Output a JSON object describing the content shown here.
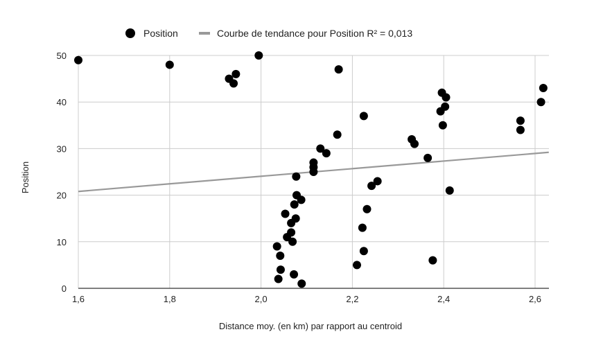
{
  "chart_data": {
    "type": "scatter",
    "title": "",
    "xlabel": "Distance moy. (en km) par rapport au centroid",
    "ylabel": "Position",
    "xlim": [
      1.6,
      2.63
    ],
    "ylim": [
      0,
      50
    ],
    "x_ticks": [
      "1,6",
      "1,8",
      "2,0",
      "2,2",
      "2,4",
      "2,6"
    ],
    "x_tick_values": [
      1.6,
      1.8,
      2.0,
      2.2,
      2.4,
      2.6
    ],
    "y_ticks": [
      "0",
      "10",
      "20",
      "30",
      "40",
      "50"
    ],
    "y_tick_values": [
      0,
      10,
      20,
      30,
      40,
      50
    ],
    "grid": true,
    "legend_position": "top",
    "series": [
      {
        "name": "Position",
        "color": "#000000",
        "marker": "circle",
        "points": [
          [
            1.6,
            49
          ],
          [
            1.8,
            48
          ],
          [
            1.93,
            45
          ],
          [
            1.94,
            44
          ],
          [
            1.945,
            46
          ],
          [
            1.995,
            50
          ],
          [
            2.17,
            47
          ],
          [
            2.225,
            37
          ],
          [
            2.167,
            33
          ],
          [
            2.13,
            30
          ],
          [
            2.143,
            29
          ],
          [
            2.115,
            27
          ],
          [
            2.115,
            26
          ],
          [
            2.115,
            25
          ],
          [
            2.077,
            24
          ],
          [
            2.078,
            20
          ],
          [
            2.088,
            19
          ],
          [
            2.073,
            18
          ],
          [
            2.053,
            16
          ],
          [
            2.076,
            15
          ],
          [
            2.066,
            14
          ],
          [
            2.066,
            12
          ],
          [
            2.057,
            11
          ],
          [
            2.069,
            10
          ],
          [
            2.035,
            9
          ],
          [
            2.042,
            7
          ],
          [
            2.043,
            4
          ],
          [
            2.072,
            3
          ],
          [
            2.038,
            2
          ],
          [
            2.089,
            1
          ],
          [
            2.21,
            5
          ],
          [
            2.225,
            8
          ],
          [
            2.222,
            13
          ],
          [
            2.232,
            17
          ],
          [
            2.242,
            22
          ],
          [
            2.255,
            23
          ],
          [
            2.33,
            32
          ],
          [
            2.336,
            31
          ],
          [
            2.365,
            28
          ],
          [
            2.376,
            6
          ],
          [
            2.393,
            38
          ],
          [
            2.396,
            42
          ],
          [
            2.405,
            41
          ],
          [
            2.403,
            39
          ],
          [
            2.398,
            35
          ],
          [
            2.413,
            21
          ],
          [
            2.568,
            36
          ],
          [
            2.568,
            34
          ],
          [
            2.613,
            40
          ],
          [
            2.618,
            43
          ]
        ]
      }
    ],
    "trendline": {
      "label": "Courbe de tendance pour Position R² = 0,013",
      "color": "#999999",
      "endpoints": [
        [
          1.6,
          20.8
        ],
        [
          2.63,
          29.2
        ]
      ]
    }
  }
}
